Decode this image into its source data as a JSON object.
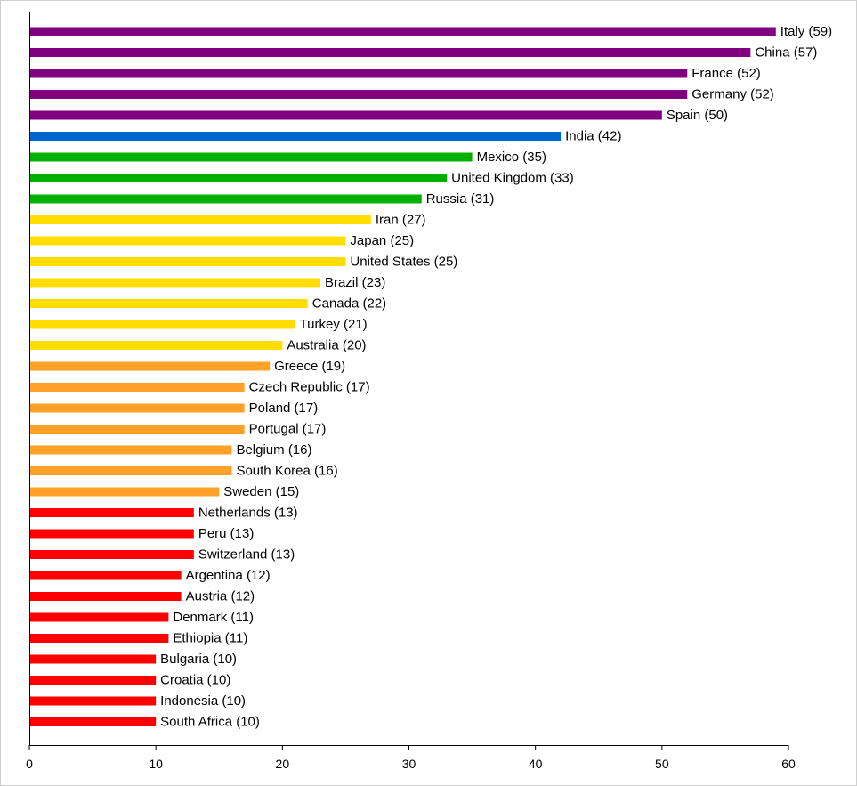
{
  "chart_data": {
    "type": "bar",
    "orientation": "horizontal",
    "title": "",
    "xlabel": "",
    "ylabel": "",
    "xlim": [
      0,
      60
    ],
    "xticks": [
      0,
      10,
      20,
      30,
      40,
      50,
      60
    ],
    "grid": false,
    "legend": "none",
    "bar_label_format": "{name} ({value})",
    "bars": [
      {
        "name": "Italy",
        "value": 59,
        "color": "#800080"
      },
      {
        "name": "China",
        "value": 57,
        "color": "#800080"
      },
      {
        "name": "France",
        "value": 52,
        "color": "#800080"
      },
      {
        "name": "Germany",
        "value": 52,
        "color": "#800080"
      },
      {
        "name": "Spain",
        "value": 50,
        "color": "#800080"
      },
      {
        "name": "India",
        "value": 42,
        "color": "#0066cc"
      },
      {
        "name": "Mexico",
        "value": 35,
        "color": "#00b000"
      },
      {
        "name": "United Kingdom",
        "value": 33,
        "color": "#00b000"
      },
      {
        "name": "Russia",
        "value": 31,
        "color": "#00b000"
      },
      {
        "name": "Iran",
        "value": 27,
        "color": "#ffdd00"
      },
      {
        "name": "Japan",
        "value": 25,
        "color": "#ffdd00"
      },
      {
        "name": "United States",
        "value": 25,
        "color": "#ffdd00"
      },
      {
        "name": "Brazil",
        "value": 23,
        "color": "#ffdd00"
      },
      {
        "name": "Canada",
        "value": 22,
        "color": "#ffdd00"
      },
      {
        "name": "Turkey",
        "value": 21,
        "color": "#ffdd00"
      },
      {
        "name": "Australia",
        "value": 20,
        "color": "#ffdd00"
      },
      {
        "name": "Greece",
        "value": 19,
        "color": "#ffa028"
      },
      {
        "name": "Czech Republic",
        "value": 17,
        "color": "#ffa028"
      },
      {
        "name": "Poland",
        "value": 17,
        "color": "#ffa028"
      },
      {
        "name": "Portugal",
        "value": 17,
        "color": "#ffa028"
      },
      {
        "name": "Belgium",
        "value": 16,
        "color": "#ffa028"
      },
      {
        "name": "South Korea",
        "value": 16,
        "color": "#ffa028"
      },
      {
        "name": "Sweden",
        "value": 15,
        "color": "#ffa028"
      },
      {
        "name": "Netherlands",
        "value": 13,
        "color": "#ff0000"
      },
      {
        "name": "Peru",
        "value": 13,
        "color": "#ff0000"
      },
      {
        "name": "Switzerland",
        "value": 13,
        "color": "#ff0000"
      },
      {
        "name": "Argentina",
        "value": 12,
        "color": "#ff0000"
      },
      {
        "name": "Austria",
        "value": 12,
        "color": "#ff0000"
      },
      {
        "name": "Denmark",
        "value": 11,
        "color": "#ff0000"
      },
      {
        "name": "Ethiopia",
        "value": 11,
        "color": "#ff0000"
      },
      {
        "name": "Bulgaria",
        "value": 10,
        "color": "#ff0000"
      },
      {
        "name": "Croatia",
        "value": 10,
        "color": "#ff0000"
      },
      {
        "name": "Indonesia",
        "value": 10,
        "color": "#ff0000"
      },
      {
        "name": "South Africa",
        "value": 10,
        "color": "#ff0000"
      }
    ]
  }
}
